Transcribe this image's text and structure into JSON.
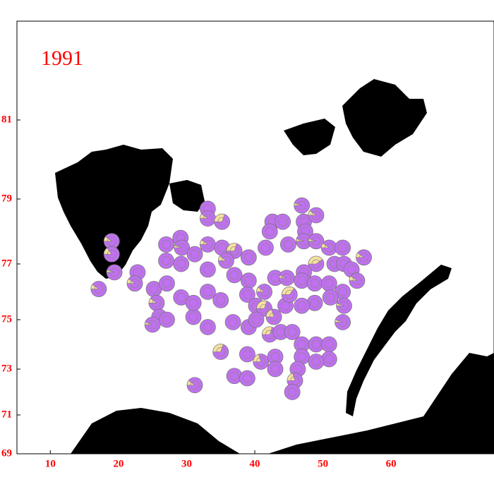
{
  "chart_data": {
    "type": "pie-map",
    "annotation": "1991",
    "xlim": [
      5.1,
      75.1
    ],
    "ylim": [
      69,
      83.5
    ],
    "xticks": [
      10,
      20,
      30,
      40,
      50,
      60
    ],
    "yticks": [
      69,
      71,
      73,
      75,
      77,
      79,
      81
    ],
    "color": "#c070f0",
    "slice_color": "#f5e0a0",
    "label_color": "#ff0000",
    "points": {
      "x": [
        17.1,
        19.0,
        19.0,
        19.4,
        22.8,
        22.4,
        25.2,
        27.1,
        25.6,
        26.0,
        25.0,
        27.1,
        27.0,
        29.1,
        29.3,
        27.0,
        29.2,
        31.2,
        29.2,
        31.0,
        31.0,
        33.1,
        33.1,
        35.2,
        33.1,
        35.2,
        37.0,
        35.8,
        37.0,
        33.1,
        33.1,
        35.0,
        39.1,
        39.1,
        38.9,
        41.6,
        41.4,
        40.2,
        41.4,
        42.8,
        44.5,
        43.0,
        44.7,
        45.1,
        42.6,
        44.1,
        42.2,
        44.9,
        46.9,
        47.2,
        49.0,
        47.4,
        47.2,
        49.0,
        50.9,
        52.9,
        56.0,
        49.0,
        47.2,
        46.9,
        48.8,
        51.7,
        53.1,
        54.2,
        55.0,
        50.9,
        52.9,
        51.1,
        53.1,
        48.8,
        46.9,
        52.9,
        42.2,
        43.8,
        45.5,
        36.8,
        39.1,
        40.2,
        33.1,
        35.0,
        38.9,
        40.9,
        43.0,
        43.0,
        46.9,
        49.0,
        50.9,
        50.9,
        46.9,
        49.0,
        46.3,
        45.9,
        45.5,
        37.0,
        38.9,
        31.2
      ],
      "y": [
        76.1,
        77.7,
        77.3,
        76.7,
        76.7,
        76.3,
        76.1,
        76.3,
        75.6,
        75.1,
        74.8,
        75.0,
        77.6,
        77.8,
        77.5,
        77.1,
        77.0,
        77.3,
        75.8,
        75.1,
        75.6,
        78.7,
        78.4,
        78.3,
        77.6,
        77.5,
        77.4,
        77.1,
        76.6,
        76.8,
        76.0,
        75.7,
        77.2,
        76.4,
        75.9,
        77.5,
        76.0,
        75.5,
        75.4,
        75.1,
        75.5,
        76.5,
        76.5,
        75.9,
        78.3,
        78.3,
        78.0,
        77.6,
        78.8,
        78.3,
        78.5,
        78.0,
        77.7,
        77.7,
        77.5,
        77.5,
        77.2,
        77.0,
        76.7,
        76.4,
        76.3,
        77.0,
        77.0,
        76.8,
        76.4,
        76.3,
        76.0,
        75.8,
        75.5,
        75.6,
        75.5,
        74.9,
        74.4,
        74.5,
        74.5,
        74.9,
        74.7,
        75.0,
        74.7,
        73.7,
        73.6,
        73.3,
        73.5,
        73.0,
        74.0,
        74.0,
        74.0,
        73.4,
        73.5,
        73.3,
        73.0,
        72.5,
        72.0,
        72.7,
        72.6,
        72.3
      ],
      "frac": [
        0.1,
        0.1,
        0.15,
        0.05,
        0,
        0.1,
        0,
        0,
        0.1,
        0,
        0.05,
        0,
        0,
        0,
        0.05,
        0,
        0,
        0,
        0,
        0,
        0,
        0,
        0.1,
        0.3,
        0.1,
        0,
        0.3,
        0.1,
        0,
        0,
        0,
        0,
        0,
        0,
        0,
        0,
        0.1,
        0,
        0.3,
        0.2,
        0,
        0,
        0.05,
        0.35,
        0,
        0,
        0,
        0,
        0.05,
        0,
        0.1,
        0,
        0.05,
        0.05,
        0.1,
        0,
        0.1,
        0.4,
        0,
        0,
        0,
        0,
        0,
        0,
        0.1,
        0,
        0,
        0,
        0.05,
        0,
        0,
        0.05,
        0.3,
        0,
        0,
        0,
        0,
        0,
        0,
        0.3,
        0,
        0.2,
        0,
        0,
        0,
        0,
        0,
        0,
        0,
        0,
        0,
        0.2,
        0,
        0,
        0,
        0.1
      ]
    }
  }
}
